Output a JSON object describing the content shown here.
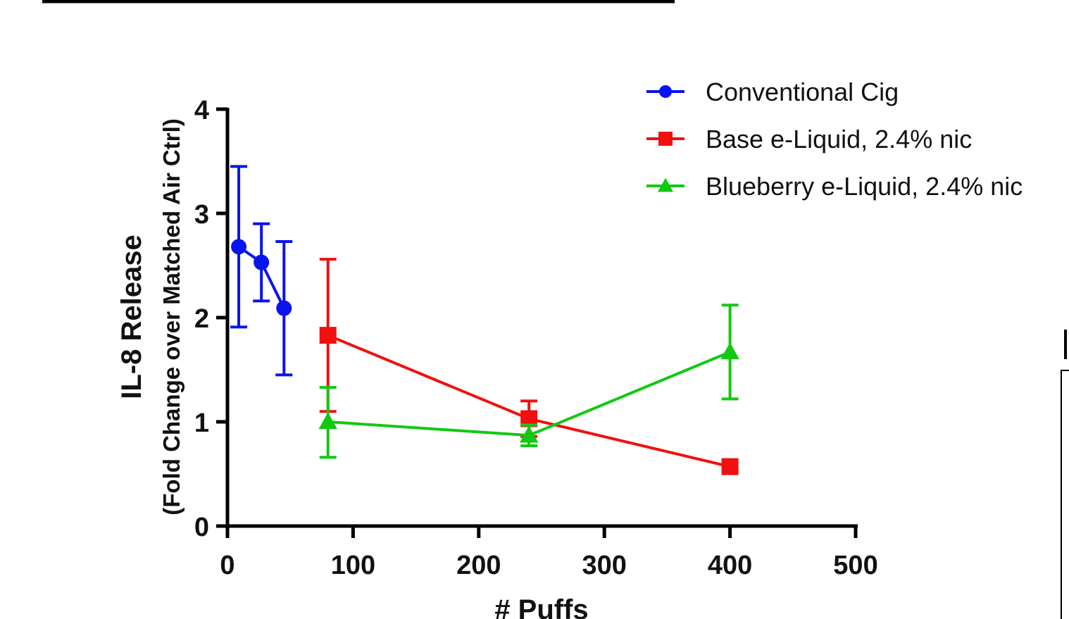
{
  "chart_data": {
    "type": "line",
    "ylabel": "IL-8 Release",
    "ylabel_sub": "(Fold Change over Matched Air Ctrl)",
    "xlabel": "# Puffs",
    "xlim": [
      0,
      500
    ],
    "ylim": [
      0,
      4
    ],
    "x_ticks": [
      "0",
      "100",
      "200",
      "300",
      "400",
      "500"
    ],
    "y_ticks": [
      "0",
      "1",
      "2",
      "3",
      "4"
    ],
    "x_tick_values": [
      0,
      100,
      200,
      300,
      400,
      500
    ],
    "y_tick_values": [
      0,
      1,
      2,
      3,
      4
    ],
    "grid": false,
    "legend_position": "top-right",
    "series": [
      {
        "name": "Conventional Cig",
        "color": "#0a14ee",
        "marker": "circle",
        "x": [
          9,
          27,
          45
        ],
        "y": [
          2.68,
          2.53,
          2.09
        ],
        "err_low": [
          1.91,
          2.16,
          1.45
        ],
        "err_high": [
          3.45,
          2.9,
          2.73
        ]
      },
      {
        "name": "Base e-Liquid, 2.4% nic",
        "color": "#f01010",
        "marker": "square",
        "x": [
          80,
          240,
          400
        ],
        "y": [
          1.83,
          1.03,
          0.57
        ],
        "err_low": [
          1.1,
          0.86,
          0.57
        ],
        "err_high": [
          2.56,
          1.2,
          0.57
        ]
      },
      {
        "name": "Blueberry e-Liquid, 2.4% nic",
        "color": "#12c812",
        "marker": "triangle",
        "x": [
          80,
          240,
          400
        ],
        "y": [
          1.0,
          0.87,
          1.67
        ],
        "err_low": [
          0.66,
          0.77,
          1.22
        ],
        "err_high": [
          1.33,
          0.97,
          2.12
        ]
      }
    ]
  }
}
